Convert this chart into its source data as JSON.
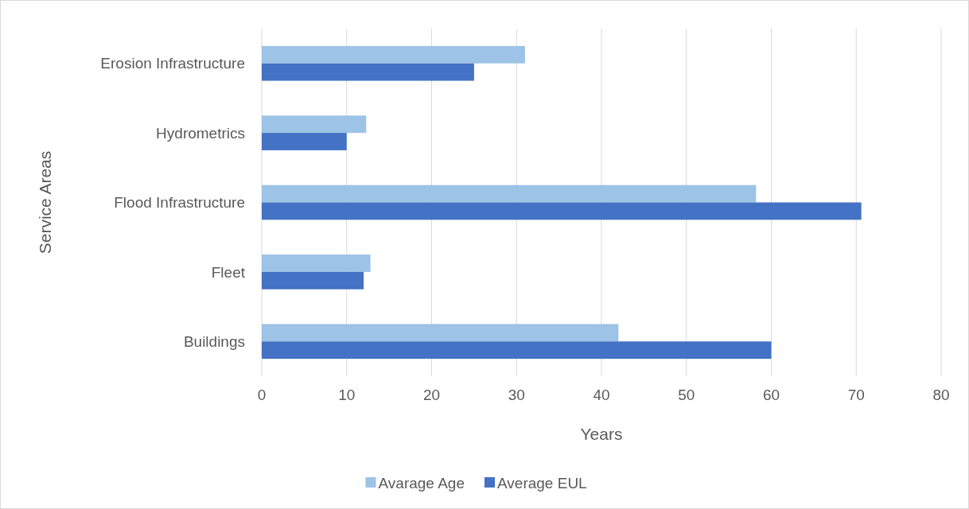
{
  "chart_data": {
    "type": "bar",
    "orientation": "horizontal",
    "ylabel": "Service Areas",
    "xlabel": "Years",
    "categories": [
      "Erosion Infrastructure",
      "Hydrometrics",
      "Flood Infrastructure",
      "Fleet",
      "Buildings"
    ],
    "series": [
      {
        "name": "Avarage Age",
        "color": "#9dc3e6",
        "values": [
          31,
          12.3,
          58.2,
          12.8,
          42
        ]
      },
      {
        "name": "Average EUL",
        "color": "#4472c4",
        "values": [
          25,
          10,
          70.6,
          12,
          60
        ]
      }
    ],
    "xlim": [
      0,
      80
    ],
    "xticks": [
      0,
      10,
      20,
      30,
      40,
      50,
      60,
      70,
      80
    ],
    "grid": "x",
    "legend": "bottom"
  }
}
